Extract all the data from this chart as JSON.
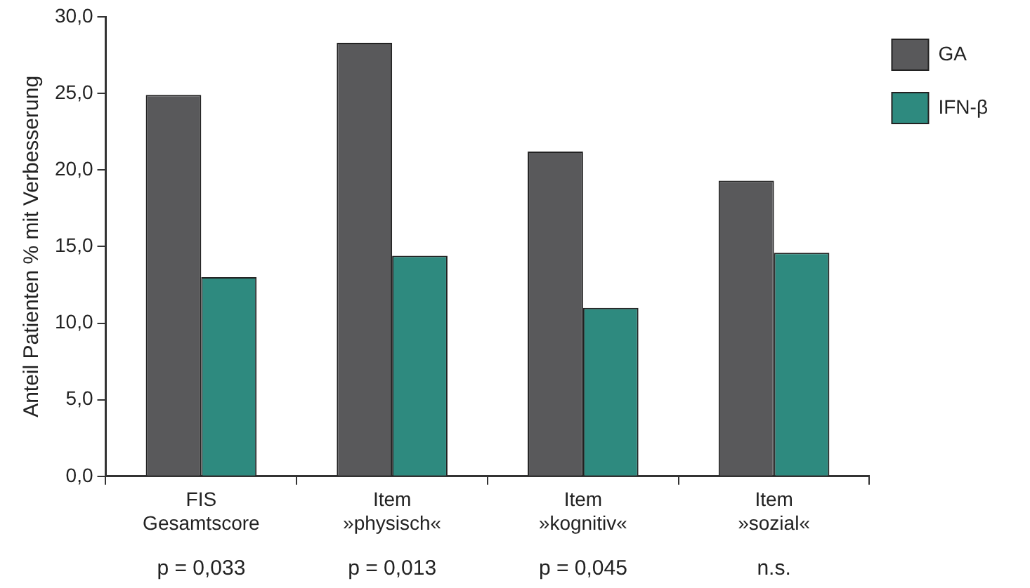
{
  "chart_data": {
    "type": "bar",
    "ylabel": "Anteil Patienten % mit Verbesserung",
    "categories": [
      "FIS\nGesamtscore",
      "Item\n»physisch«",
      "Item\n»kognitiv«",
      "Item\n»sozial«"
    ],
    "series": [
      {
        "name": "GA",
        "color": "#59595b",
        "values": [
          24.9,
          28.3,
          21.2,
          19.3
        ]
      },
      {
        "name": "IFN-β",
        "color": "#2e8a7f",
        "values": [
          13.0,
          14.4,
          11.0,
          14.6
        ]
      }
    ],
    "ylim": [
      0,
      30
    ],
    "yticks": [
      {
        "value": 0,
        "label": "0,0"
      },
      {
        "value": 5,
        "label": "5,0"
      },
      {
        "value": 10,
        "label": "10,0"
      },
      {
        "value": 15,
        "label": "15,0"
      },
      {
        "value": 20,
        "label": "20,0"
      },
      {
        "value": 25,
        "label": "25,0"
      },
      {
        "value": 30,
        "label": "30,0"
      }
    ],
    "annotations": [
      "p = 0,033",
      "p = 0,013",
      "p = 0,045",
      "n.s."
    ],
    "grid": false,
    "legend": "right"
  }
}
